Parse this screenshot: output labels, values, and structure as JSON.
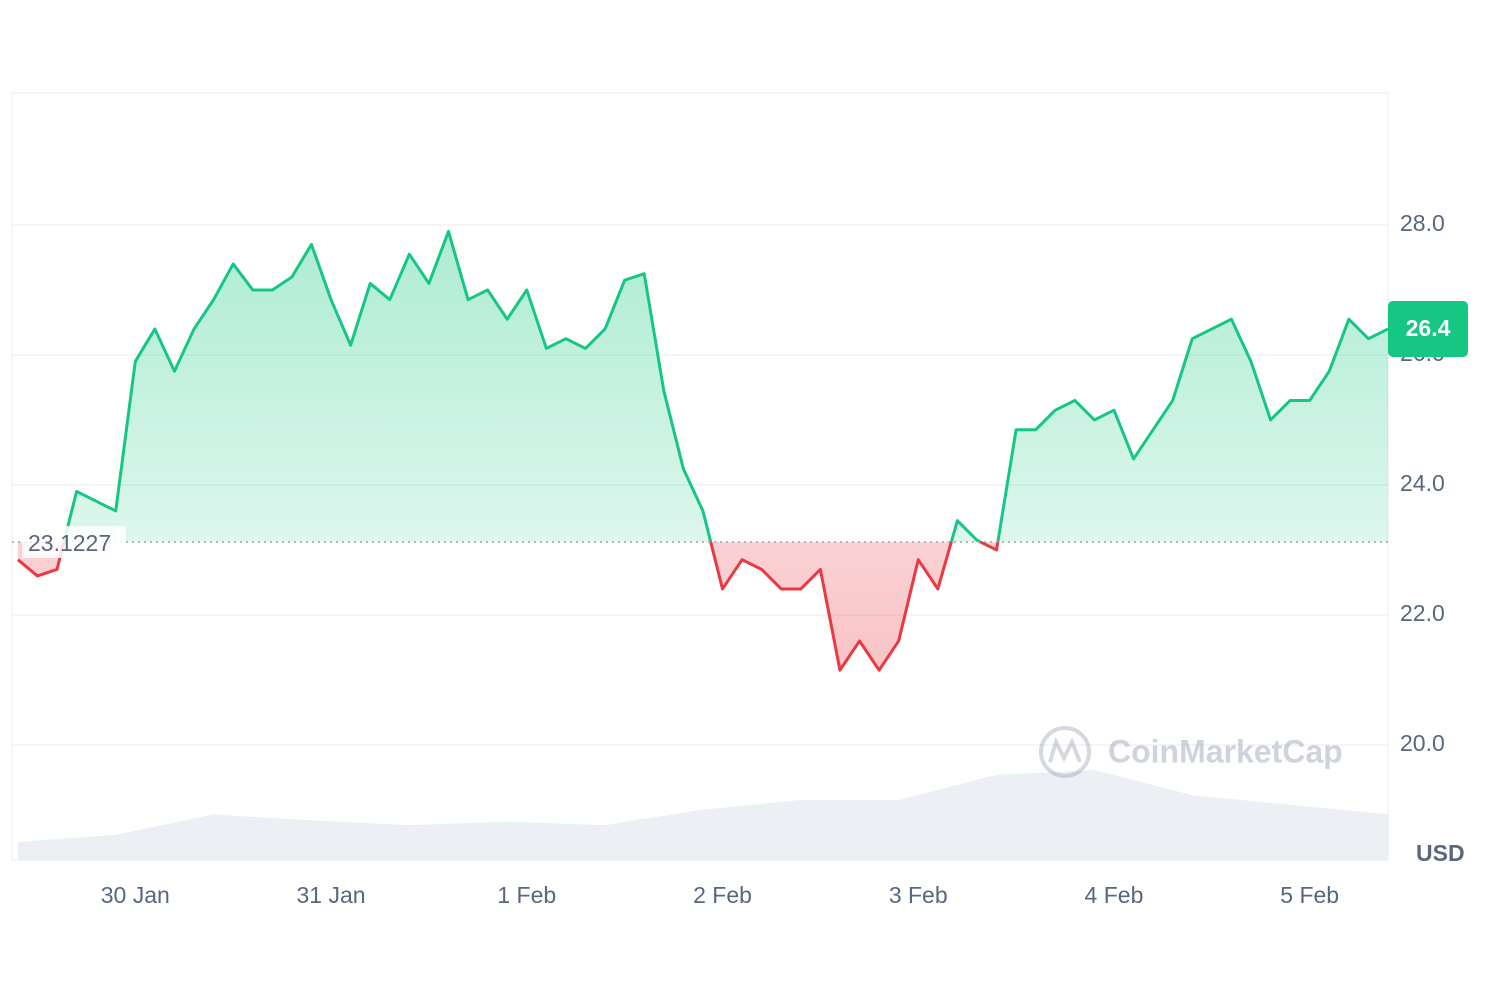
{
  "chart_data": {
    "type": "line",
    "baseline": 23.1227,
    "y_unit": "USD",
    "watermark": "CoinMarketCap",
    "xlim": [
      -0.63,
      6.4
    ],
    "xticks": [
      {
        "value": 0,
        "label": "30 Jan"
      },
      {
        "value": 1,
        "label": "31 Jan"
      },
      {
        "value": 2,
        "label": "1 Feb"
      },
      {
        "value": 3,
        "label": "2 Feb"
      },
      {
        "value": 4,
        "label": "3 Feb"
      },
      {
        "value": 5,
        "label": "4 Feb"
      },
      {
        "value": 6,
        "label": "5 Feb"
      }
    ],
    "ylim": [
      18.23,
      30.03
    ],
    "yticks": [
      {
        "value": 20,
        "label": "20.0"
      },
      {
        "value": 22,
        "label": "22.0"
      },
      {
        "value": 24,
        "label": "24.0"
      },
      {
        "value": 26,
        "label": "26.0"
      },
      {
        "value": 28,
        "label": "28.0"
      }
    ],
    "grid": true,
    "above_color": "#16c784",
    "below_color": "#ea3943",
    "series": [
      {
        "x": [
          -0.6,
          -0.5,
          -0.4,
          -0.3,
          -0.2,
          -0.1,
          0,
          0.1,
          0.2,
          0.3,
          0.4,
          0.5,
          0.6,
          0.7,
          0.8,
          0.9,
          1,
          1.1,
          1.2,
          1.3,
          1.4,
          1.5,
          1.6,
          1.7,
          1.8,
          1.9,
          2,
          2.1,
          2.2,
          2.3,
          2.4,
          2.5,
          2.6,
          2.7,
          2.8,
          2.9,
          3,
          3.1,
          3.2,
          3.3,
          3.4,
          3.5,
          3.6,
          3.7,
          3.8,
          3.9,
          4,
          4.1,
          4.2,
          4.3,
          4.4,
          4.5,
          4.6,
          4.7,
          4.8,
          4.9,
          5,
          5.1,
          5.2,
          5.3,
          5.4,
          5.5,
          5.6,
          5.7,
          5.8,
          5.9,
          6,
          6.1,
          6.2,
          6.3,
          6.4
        ],
        "values": [
          22.85,
          22.6,
          22.7,
          23.9,
          23.75,
          23.6,
          25.9,
          26.4,
          25.75,
          26.4,
          26.85,
          27.4,
          27.0,
          27.0,
          27.2,
          27.7,
          26.85,
          26.15,
          27.1,
          26.85,
          27.55,
          27.1,
          27.9,
          26.85,
          27.0,
          26.55,
          27.0,
          26.1,
          26.25,
          26.1,
          26.4,
          27.15,
          27.25,
          25.45,
          24.25,
          23.6,
          22.4,
          22.85,
          22.7,
          22.4,
          22.4,
          22.7,
          21.15,
          21.6,
          21.15,
          21.6,
          22.85,
          22.4,
          23.45,
          23.15,
          23.0,
          24.85,
          24.85,
          25.15,
          25.3,
          25.0,
          25.15,
          24.4,
          24.85,
          25.3,
          26.25,
          26.4,
          26.55,
          25.9,
          25.0,
          25.3,
          25.3,
          25.75,
          26.55,
          26.25,
          26.4
        ]
      }
    ],
    "volume": {
      "color": "#eceff3",
      "ylim": [
        0,
        100
      ],
      "x": [
        -0.6,
        -0.1,
        0.4,
        0.9,
        1.4,
        1.9,
        2.4,
        2.9,
        3.4,
        3.9,
        4.4,
        4.9,
        5.4,
        5.9,
        6.4
      ],
      "values": [
        15,
        21,
        38,
        33,
        29,
        32,
        29,
        42,
        50,
        50,
        71,
        75,
        54,
        46,
        38
      ]
    }
  }
}
